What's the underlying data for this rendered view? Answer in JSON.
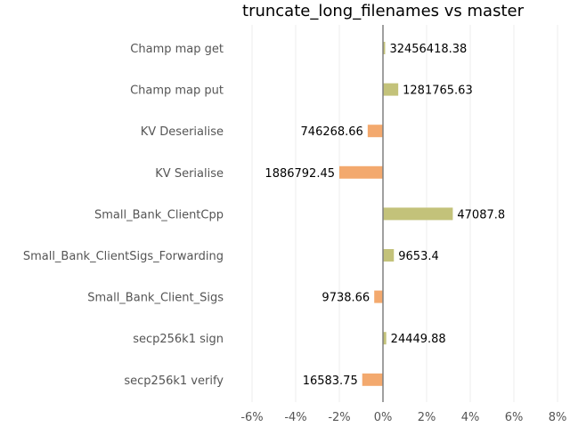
{
  "chart_data": {
    "type": "bar",
    "orientation": "horizontal",
    "title": "truncate_long_filenames vs master",
    "xlabel": "",
    "ylabel": "",
    "xlim": [
      -0.07,
      0.08
    ],
    "xticks": [
      -0.06,
      -0.04,
      -0.02,
      0,
      0.02,
      0.04,
      0.06,
      0.08
    ],
    "xtick_labels": [
      "-6%",
      "-4%",
      "-2%",
      "0%",
      "2%",
      "4%",
      "6%",
      "8%"
    ],
    "grid": true,
    "categories": [
      "Champ map get",
      "Champ map put",
      "KV Deserialise",
      "KV Serialise",
      "Small_Bank_ClientCpp",
      "Small_Bank_ClientSigs_Forwarding",
      "Small_Bank_Client_Sigs",
      "secp256k1 sign",
      "secp256k1 verify"
    ],
    "values": [
      0.001,
      0.007,
      -0.007,
      -0.02,
      0.032,
      0.005,
      -0.004,
      0.0015,
      -0.0095
    ],
    "data_labels": [
      "32456418.38",
      "1281765.63",
      "746268.66",
      "1886792.45",
      "47087.8",
      "9653.4",
      "9738.66",
      "24449.88",
      "16583.75"
    ],
    "colors": {
      "positive": "#c3c27a",
      "negative": "#f3a96e",
      "zero_line": "#808080",
      "grid": "#eeeeee"
    }
  }
}
